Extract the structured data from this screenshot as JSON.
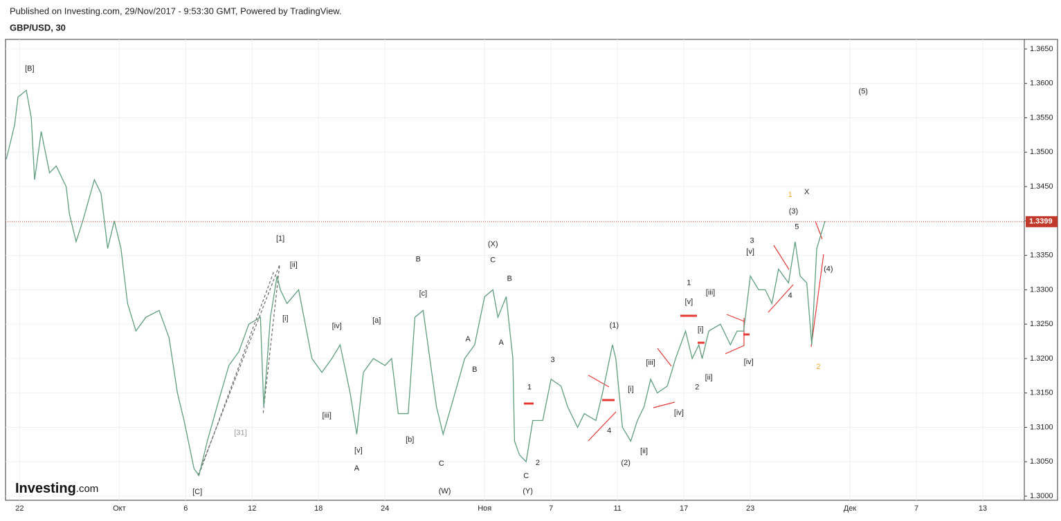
{
  "header": {
    "published": "Published on Investing.com, 29/Nov/2017 - 9:53:30 GMT, Powered by TradingView.",
    "symbol": "GBP/USD, 30"
  },
  "logo": {
    "name": "Investing",
    "suffix": ".com"
  },
  "chart_data": {
    "type": "line",
    "color": "#5e9e7c",
    "grid": true,
    "x": [
      -0.8,
      -0.3,
      -0.1,
      0.4,
      0.7,
      0.9,
      1.3,
      1.8,
      2.2,
      2.8,
      3.0,
      3.4,
      3.8,
      4.5,
      4.9,
      5.3,
      5.7,
      6.1,
      6.5,
      7.0,
      7.6,
      8.4,
      9.0,
      9.5,
      9.9,
      10.5,
      10.8,
      11.3,
      12.0,
      12.6,
      13.2,
      13.8,
      14.5,
      14.7,
      15.1,
      15.5,
      15.7,
      16.1,
      16.8,
      17.2,
      17.6,
      18.2,
      18.8,
      19.3,
      19.9,
      20.3,
      20.7,
      21.3,
      22.0,
      22.4,
      22.8,
      23.4,
      23.8,
      24.3,
      24.7,
      25.1,
      25.5,
      26.1,
      26.8,
      27.4,
      28.0,
      28.5,
      28.8,
      29.3,
      29.7,
      29.8,
      30.1,
      30.5,
      30.9,
      31.5,
      32.0,
      32.6,
      33.0,
      33.6,
      34.0,
      34.7,
      35.1,
      35.7,
      35.9,
      36.3,
      36.8,
      37.2,
      37.6,
      38.0,
      38.4,
      39.0,
      39.5,
      40.1,
      40.5,
      40.9,
      41.1,
      41.5,
      42.2,
      42.8,
      43.2,
      43.6,
      44.0,
      44.5,
      44.9,
      45.3,
      45.7,
      46.3,
      46.7,
      47.0,
      47.4,
      47.7,
      48.0,
      48.5
    ],
    "values": [
      1.349,
      1.354,
      1.358,
      1.359,
      1.355,
      1.346,
      1.353,
      1.347,
      1.348,
      1.345,
      1.341,
      1.337,
      1.34,
      1.346,
      1.344,
      1.336,
      1.34,
      1.336,
      1.328,
      1.324,
      1.326,
      1.327,
      1.323,
      1.315,
      1.311,
      1.304,
      1.303,
      1.308,
      1.314,
      1.319,
      1.321,
      1.325,
      1.326,
      1.313,
      1.326,
      1.332,
      1.33,
      1.328,
      1.33,
      1.325,
      1.32,
      1.318,
      1.32,
      1.322,
      1.315,
      1.309,
      1.318,
      1.32,
      1.319,
      1.32,
      1.312,
      1.312,
      1.326,
      1.327,
      1.32,
      1.313,
      1.309,
      1.314,
      1.32,
      1.322,
      1.329,
      1.33,
      1.326,
      1.329,
      1.32,
      1.308,
      1.306,
      1.305,
      1.311,
      1.311,
      1.317,
      1.316,
      1.313,
      1.31,
      1.312,
      1.311,
      1.315,
      1.322,
      1.32,
      1.31,
      1.308,
      1.311,
      1.313,
      1.317,
      1.315,
      1.316,
      1.32,
      1.324,
      1.32,
      1.322,
      1.32,
      1.324,
      1.325,
      1.322,
      1.324,
      1.324,
      1.332,
      1.33,
      1.33,
      1.328,
      1.333,
      1.331,
      1.337,
      1.332,
      1.331,
      1.322,
      1.336,
      1.34
    ],
    "last_price": 1.3399,
    "xlim": [
      -0.85,
      60.5
    ],
    "xticks": [
      {
        "value": 0,
        "label": "22"
      },
      {
        "value": 6,
        "label": "Окт"
      },
      {
        "value": 10,
        "label": "6"
      },
      {
        "value": 14,
        "label": "12"
      },
      {
        "value": 18,
        "label": "18"
      },
      {
        "value": 22,
        "label": "24"
      },
      {
        "value": 28,
        "label": "Ноя"
      },
      {
        "value": 32,
        "label": "7"
      },
      {
        "value": 36,
        "label": "11"
      },
      {
        "value": 40,
        "label": "17"
      },
      {
        "value": 44,
        "label": "23"
      },
      {
        "value": 50,
        "label": "Дек"
      },
      {
        "value": 54,
        "label": "7"
      },
      {
        "value": 58,
        "label": "13"
      }
    ],
    "ylim": [
      1.2994,
      1.3664
    ],
    "yticks": [
      {
        "value": 1.3,
        "label": "1.3000"
      },
      {
        "value": 1.305,
        "label": "1.3050"
      },
      {
        "value": 1.31,
        "label": "1.3100"
      },
      {
        "value": 1.315,
        "label": "1.3150"
      },
      {
        "value": 1.32,
        "label": "1.3200"
      },
      {
        "value": 1.325,
        "label": "1.3250"
      },
      {
        "value": 1.33,
        "label": "1.3300"
      },
      {
        "value": 1.335,
        "label": "1.3350"
      },
      {
        "value": 1.34,
        "label": "1.3400"
      },
      {
        "value": 1.345,
        "label": "1.3450"
      },
      {
        "value": 1.35,
        "label": "1.3500"
      },
      {
        "value": 1.355,
        "label": "1.3550"
      },
      {
        "value": 1.36,
        "label": "1.3600"
      },
      {
        "value": 1.365,
        "label": "1.3650"
      }
    ],
    "annotations": [
      {
        "text": "[B]",
        "x": 0.6,
        "y": 1.3621
      },
      {
        "text": "[1]",
        "x": 15.7,
        "y": 1.3374
      },
      {
        "text": "[ii]",
        "x": 16.5,
        "y": 1.3336
      },
      {
        "text": "[i]",
        "x": 16.0,
        "y": 1.3258
      },
      {
        "text": "[31]",
        "x": 13.3,
        "y": 1.3092,
        "color": "#999999"
      },
      {
        "text": "[C]",
        "x": 10.7,
        "y": 1.3006
      },
      {
        "text": "[iv]",
        "x": 19.1,
        "y": 1.3247
      },
      {
        "text": "[iii]",
        "x": 18.5,
        "y": 1.3117
      },
      {
        "text": "[v]",
        "x": 20.4,
        "y": 1.3066
      },
      {
        "text": "A",
        "x": 20.3,
        "y": 1.304
      },
      {
        "text": "[a]",
        "x": 21.5,
        "y": 1.3255
      },
      {
        "text": "B",
        "x": 24.0,
        "y": 1.3344
      },
      {
        "text": "[c]",
        "x": 24.3,
        "y": 1.3294
      },
      {
        "text": "[b]",
        "x": 23.5,
        "y": 1.3082
      },
      {
        "text": "C",
        "x": 25.4,
        "y": 1.3047
      },
      {
        "text": "(W)",
        "x": 25.6,
        "y": 1.3007
      },
      {
        "text": "A",
        "x": 27.0,
        "y": 1.3228
      },
      {
        "text": "B",
        "x": 27.4,
        "y": 1.3184
      },
      {
        "text": "(X)",
        "x": 28.5,
        "y": 1.3366
      },
      {
        "text": "C",
        "x": 28.5,
        "y": 1.3343
      },
      {
        "text": "B",
        "x": 29.5,
        "y": 1.3316
      },
      {
        "text": "A",
        "x": 29.0,
        "y": 1.3223
      },
      {
        "text": "1",
        "x": 30.7,
        "y": 1.3158
      },
      {
        "text": "2",
        "x": 31.2,
        "y": 1.3048
      },
      {
        "text": "C",
        "x": 30.5,
        "y": 1.3029
      },
      {
        "text": "(Y)",
        "x": 30.6,
        "y": 1.3007
      },
      {
        "text": "3",
        "x": 32.1,
        "y": 1.3198
      },
      {
        "text": "(1)",
        "x": 35.8,
        "y": 1.3248
      },
      {
        "text": "4",
        "x": 35.5,
        "y": 1.3095
      },
      {
        "text": "[i]",
        "x": 36.8,
        "y": 1.3155
      },
      {
        "text": "(2)",
        "x": 36.5,
        "y": 1.3048
      },
      {
        "text": "[ii]",
        "x": 37.6,
        "y": 1.3065
      },
      {
        "text": "[iii]",
        "x": 38.0,
        "y": 1.3194
      },
      {
        "text": "[iv]",
        "x": 39.7,
        "y": 1.3121
      },
      {
        "text": "1",
        "x": 40.3,
        "y": 1.331
      },
      {
        "text": "[v]",
        "x": 40.3,
        "y": 1.3282
      },
      {
        "text": "[i]",
        "x": 41.0,
        "y": 1.3242
      },
      {
        "text": "[iii]",
        "x": 41.6,
        "y": 1.3296
      },
      {
        "text": "[ii]",
        "x": 41.5,
        "y": 1.3172
      },
      {
        "text": "2",
        "x": 40.8,
        "y": 1.3158
      },
      {
        "text": "[iv]",
        "x": 43.9,
        "y": 1.3195
      },
      {
        "text": "3",
        "x": 44.1,
        "y": 1.3371
      },
      {
        "text": "[v]",
        "x": 44.0,
        "y": 1.3355
      },
      {
        "text": "4",
        "x": 46.4,
        "y": 1.3291
      },
      {
        "text": "5",
        "x": 46.8,
        "y": 1.3391
      },
      {
        "text": "(3)",
        "x": 46.6,
        "y": 1.3414
      },
      {
        "text": "1",
        "x": 46.4,
        "y": 1.3438,
        "color": "#f5a623"
      },
      {
        "text": "X",
        "x": 47.4,
        "y": 1.3442
      },
      {
        "text": "(4)",
        "x": 48.7,
        "y": 1.333
      },
      {
        "text": "2",
        "x": 48.1,
        "y": 1.3188,
        "color": "#f5a623"
      },
      {
        "text": "(5)",
        "x": 50.8,
        "y": 1.3588
      }
    ]
  }
}
